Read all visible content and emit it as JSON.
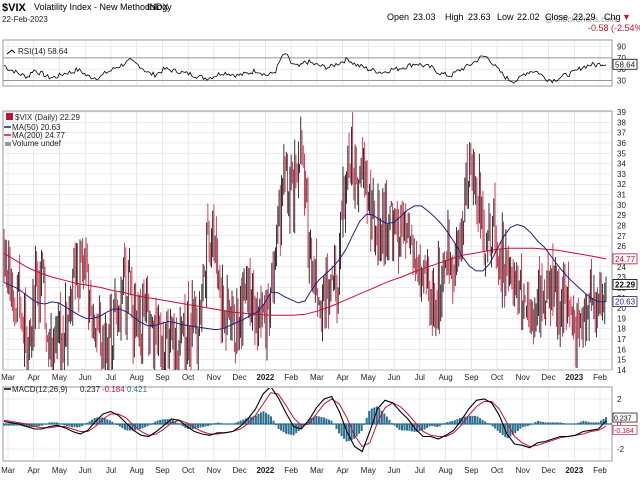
{
  "header": {
    "symbol": "$VIX",
    "description": "Volatility Index - New Methodology",
    "exchange": "INDX",
    "date": "22-Feb-2023",
    "open_label": "Open",
    "open": "23.03",
    "high_label": "High",
    "high": "23.63",
    "low_label": "Low",
    "low": "22.02",
    "close_label": "Close",
    "close": "22.29",
    "change_label": "Chg",
    "change": "-0.58 (-2.54%)",
    "change_arrow": "▼",
    "watermark": "@ StockCharts.com"
  },
  "colors": {
    "background": "#ffffff",
    "grid": "#d9d9d9",
    "price_up": "#000000",
    "price_down": "#c8102e",
    "ma50": "#1f1f7a",
    "ma200": "#c8102e",
    "macd_line": "#000000",
    "signal_line": "#c8102e",
    "histogram": "#2b6e8f",
    "rsi_line": "#000000",
    "change_red": "#c8102e"
  },
  "chart_data": [
    {
      "type": "line",
      "title": "RSI(14) 58.64",
      "legend": "RSI(14) 58.64",
      "ylim": [
        20,
        100
      ],
      "y_ticks": [
        "30",
        "50",
        "70",
        "90"
      ],
      "reference_levels": [
        30,
        70
      ],
      "last_value": "58.64",
      "series": [
        {
          "name": "RSI(14)",
          "values": [
            57,
            50,
            47,
            42,
            39,
            36,
            49,
            45,
            41,
            36,
            35,
            37,
            41,
            44,
            44,
            49,
            46,
            38,
            36,
            35,
            37,
            44,
            47,
            53,
            56,
            61,
            65,
            60,
            56,
            48,
            42,
            40,
            44,
            50,
            49,
            47,
            46,
            43,
            42,
            40,
            37,
            35,
            34,
            37,
            40,
            44,
            43,
            41,
            39,
            40,
            42,
            45,
            48,
            44,
            39,
            41,
            47,
            68,
            78,
            62,
            56,
            54,
            63,
            62,
            58,
            56,
            54,
            53,
            57,
            61,
            65,
            68,
            60,
            56,
            54,
            50,
            48,
            46,
            44,
            47,
            50,
            50,
            53,
            55,
            58,
            60,
            57,
            55,
            53,
            47,
            42,
            40,
            38,
            44,
            49,
            53,
            58,
            63,
            70,
            73,
            68,
            56,
            47,
            38,
            31,
            29,
            31,
            41,
            45,
            47,
            45,
            37,
            32,
            30,
            33,
            37,
            40,
            43,
            47,
            53,
            56,
            58,
            57,
            60,
            59
          ]
        }
      ]
    },
    {
      "type": "line",
      "title": "$VIX (Daily) 22.29",
      "legend": [
        "$VIX (Daily) 22.29",
        "MA(50) 20.63",
        "MA(200) 24.77",
        "Volume undef"
      ],
      "ylim": [
        14,
        39
      ],
      "y_ticks": [
        "14",
        "15",
        "16",
        "17",
        "18",
        "19",
        "20",
        "21",
        "22",
        "23",
        "24",
        "25",
        "26",
        "27",
        "28",
        "29",
        "30",
        "31",
        "32",
        "33",
        "34",
        "35",
        "36",
        "37",
        "38",
        "39"
      ],
      "value_tags": [
        {
          "series": "MA(200)",
          "label": "24.77",
          "value": 24.77
        },
        {
          "series": "Close",
          "label": "22.29",
          "value": 22.29
        },
        {
          "series": "MA(50)",
          "label": "20.63",
          "value": 20.63
        }
      ],
      "series": [
        {
          "name": "$VIX Close (weekly approximation)",
          "values": [
            26.5,
            22,
            21.5,
            19,
            18,
            17,
            24,
            22,
            19,
            16.5,
            17,
            17.5,
            20,
            22,
            23,
            25,
            21,
            17.5,
            16.5,
            16,
            17,
            19,
            22,
            23,
            18.5,
            18,
            19.5,
            18,
            17,
            17.5,
            16,
            15.5,
            15.5,
            17,
            19,
            18,
            19,
            22,
            27,
            28,
            23,
            18.5,
            20,
            17.5,
            19,
            25,
            22,
            18,
            19.5,
            19,
            23,
            28,
            33,
            30,
            31,
            36,
            30,
            26,
            23,
            20,
            21,
            25,
            22,
            31,
            35,
            33,
            32,
            33,
            30,
            27,
            27.5,
            28,
            28,
            27,
            27,
            26.5,
            26,
            23,
            22.5,
            21,
            20.5,
            22,
            24,
            25,
            25,
            26.5,
            32.5,
            33,
            31,
            29,
            26,
            28,
            25.5,
            24,
            22.5,
            23,
            22,
            21,
            20.5,
            19.5,
            21,
            21.5,
            20.5,
            21,
            21.5,
            19.8,
            19,
            18.5,
            19.5,
            21,
            20,
            21,
            22.29
          ]
        },
        {
          "name": "MA(50)",
          "values": [
            22.5,
            22.2,
            21.9,
            21.4,
            20.9,
            20.5,
            20.4,
            20.6,
            20.5,
            20.1,
            19.7,
            19.3,
            19.0,
            19.0,
            19.2,
            19.6,
            19.9,
            19.9,
            19.6,
            19.1,
            18.6,
            18.3,
            18.3,
            18.5,
            18.7,
            18.6,
            18.4,
            18.3,
            18.2,
            18.1,
            18.0,
            17.9,
            18.0,
            18.3,
            18.6,
            18.9,
            19.3,
            19.6,
            20.4,
            21.5,
            21.5,
            21.1,
            20.8,
            20.5,
            20.7,
            21.8,
            22.7,
            23.3,
            23.9,
            24.7,
            25.7,
            27.1,
            28.4,
            29.1,
            29.0,
            28.5,
            28.2,
            28.3,
            28.9,
            29.5,
            29.9,
            29.9,
            29.4,
            28.8,
            28.1,
            27.2,
            26.2,
            25.0,
            24.1,
            23.6,
            23.6,
            24.3,
            25.6,
            26.9,
            27.8,
            28.1,
            27.9,
            27.3,
            26.5,
            25.9,
            25.0,
            24.1,
            23.3,
            22.6,
            22.0,
            21.4,
            20.9,
            20.6,
            20.63
          ]
        },
        {
          "name": "MA(200)",
          "values": [
            25.3,
            24.6,
            23.9,
            23.4,
            23.0,
            22.7,
            22.4,
            22.2,
            22.0,
            21.7,
            21.5,
            21.2,
            21.0,
            20.8,
            20.6,
            20.4,
            20.2,
            20.0,
            19.8,
            19.6,
            19.5,
            19.4,
            19.3,
            19.3,
            19.3,
            19.4,
            19.7,
            20.1,
            20.6,
            21.1,
            21.6,
            22.1,
            22.6,
            23.0,
            23.5,
            23.9,
            24.3,
            24.7,
            25.1,
            25.3,
            25.5,
            25.7,
            25.8,
            25.8,
            25.8,
            25.7,
            25.6,
            25.4,
            25.2,
            25.0,
            24.77
          ]
        }
      ]
    },
    {
      "type": "line",
      "title": "MACD(12,26,9) 0.237, -0.184, 0.421",
      "legend": [
        "MACD(12,26,9)",
        "0.237",
        "-0.184",
        "0.421"
      ],
      "ylim": [
        -3,
        3
      ],
      "y_ticks": [
        "-2",
        "0",
        "2"
      ],
      "value_tags": [
        "0.237",
        "-0.184"
      ],
      "x_labels": [
        "Mar",
        "Apr",
        "May",
        "Jun",
        "Jul",
        "Aug",
        "Sep",
        "Oct",
        "Nov",
        "Dec",
        "2022",
        "Feb",
        "Mar",
        "Apr",
        "May",
        "Jun",
        "Jul",
        "Aug",
        "Sep",
        "Oct",
        "Nov",
        "Dec",
        "2023",
        "Feb"
      ],
      "series": [
        {
          "name": "MACD",
          "values": [
            0.2,
            0.1,
            0.0,
            -0.2,
            -0.4,
            -0.4,
            -0.2,
            -0.1,
            -0.3,
            -0.6,
            -0.8,
            -0.5,
            0.2,
            0.8,
            1.0,
            0.7,
            0.1,
            -0.5,
            -0.9,
            -1.0,
            -0.6,
            -0.1,
            0.4,
            0.3,
            -0.2,
            -0.6,
            -0.8,
            -0.9,
            -0.7,
            -0.7,
            -0.6,
            -0.2,
            0.4,
            1.2,
            2.4,
            3.0,
            2.1,
            0.9,
            -0.2,
            -0.4,
            0.3,
            1.3,
            2.0,
            2.2,
            1.0,
            -0.6,
            -1.8,
            -2.2,
            -0.6,
            1.2,
            1.9,
            1.7,
            1.0,
            0.4,
            -0.4,
            -1.0,
            -1.0,
            -1.2,
            -0.9,
            -0.5,
            0.3,
            1.2,
            1.9,
            2.0,
            1.7,
            0.7,
            -0.8,
            -1.6,
            -1.7,
            -1.9,
            -1.5,
            -1.4,
            -1.2,
            -1.0,
            -1.0,
            -0.9,
            -0.6,
            -0.5,
            -0.4,
            0.237
          ]
        },
        {
          "name": "Signal",
          "values": [
            0.3,
            0.2,
            0.1,
            0.0,
            -0.2,
            -0.3,
            -0.3,
            -0.2,
            -0.2,
            -0.4,
            -0.6,
            -0.6,
            -0.2,
            0.4,
            0.8,
            0.8,
            0.5,
            -0.1,
            -0.6,
            -0.9,
            -0.8,
            -0.4,
            0.1,
            0.3,
            0.1,
            -0.3,
            -0.6,
            -0.8,
            -0.8,
            -0.7,
            -0.6,
            -0.4,
            0.0,
            0.7,
            1.6,
            2.5,
            2.4,
            1.5,
            0.5,
            -0.1,
            0.0,
            0.8,
            1.6,
            2.0,
            1.6,
            0.5,
            -0.9,
            -1.8,
            -1.5,
            0.1,
            1.3,
            1.7,
            1.4,
            0.8,
            0.1,
            -0.6,
            -0.9,
            -1.0,
            -1.0,
            -0.7,
            -0.1,
            0.7,
            1.4,
            1.8,
            1.8,
            1.2,
            0.1,
            -1.0,
            -1.5,
            -1.8,
            -1.7,
            -1.5,
            -1.3,
            -1.1,
            -1.0,
            -0.9,
            -0.8,
            -0.6,
            -0.5,
            -0.184
          ]
        }
      ]
    }
  ]
}
